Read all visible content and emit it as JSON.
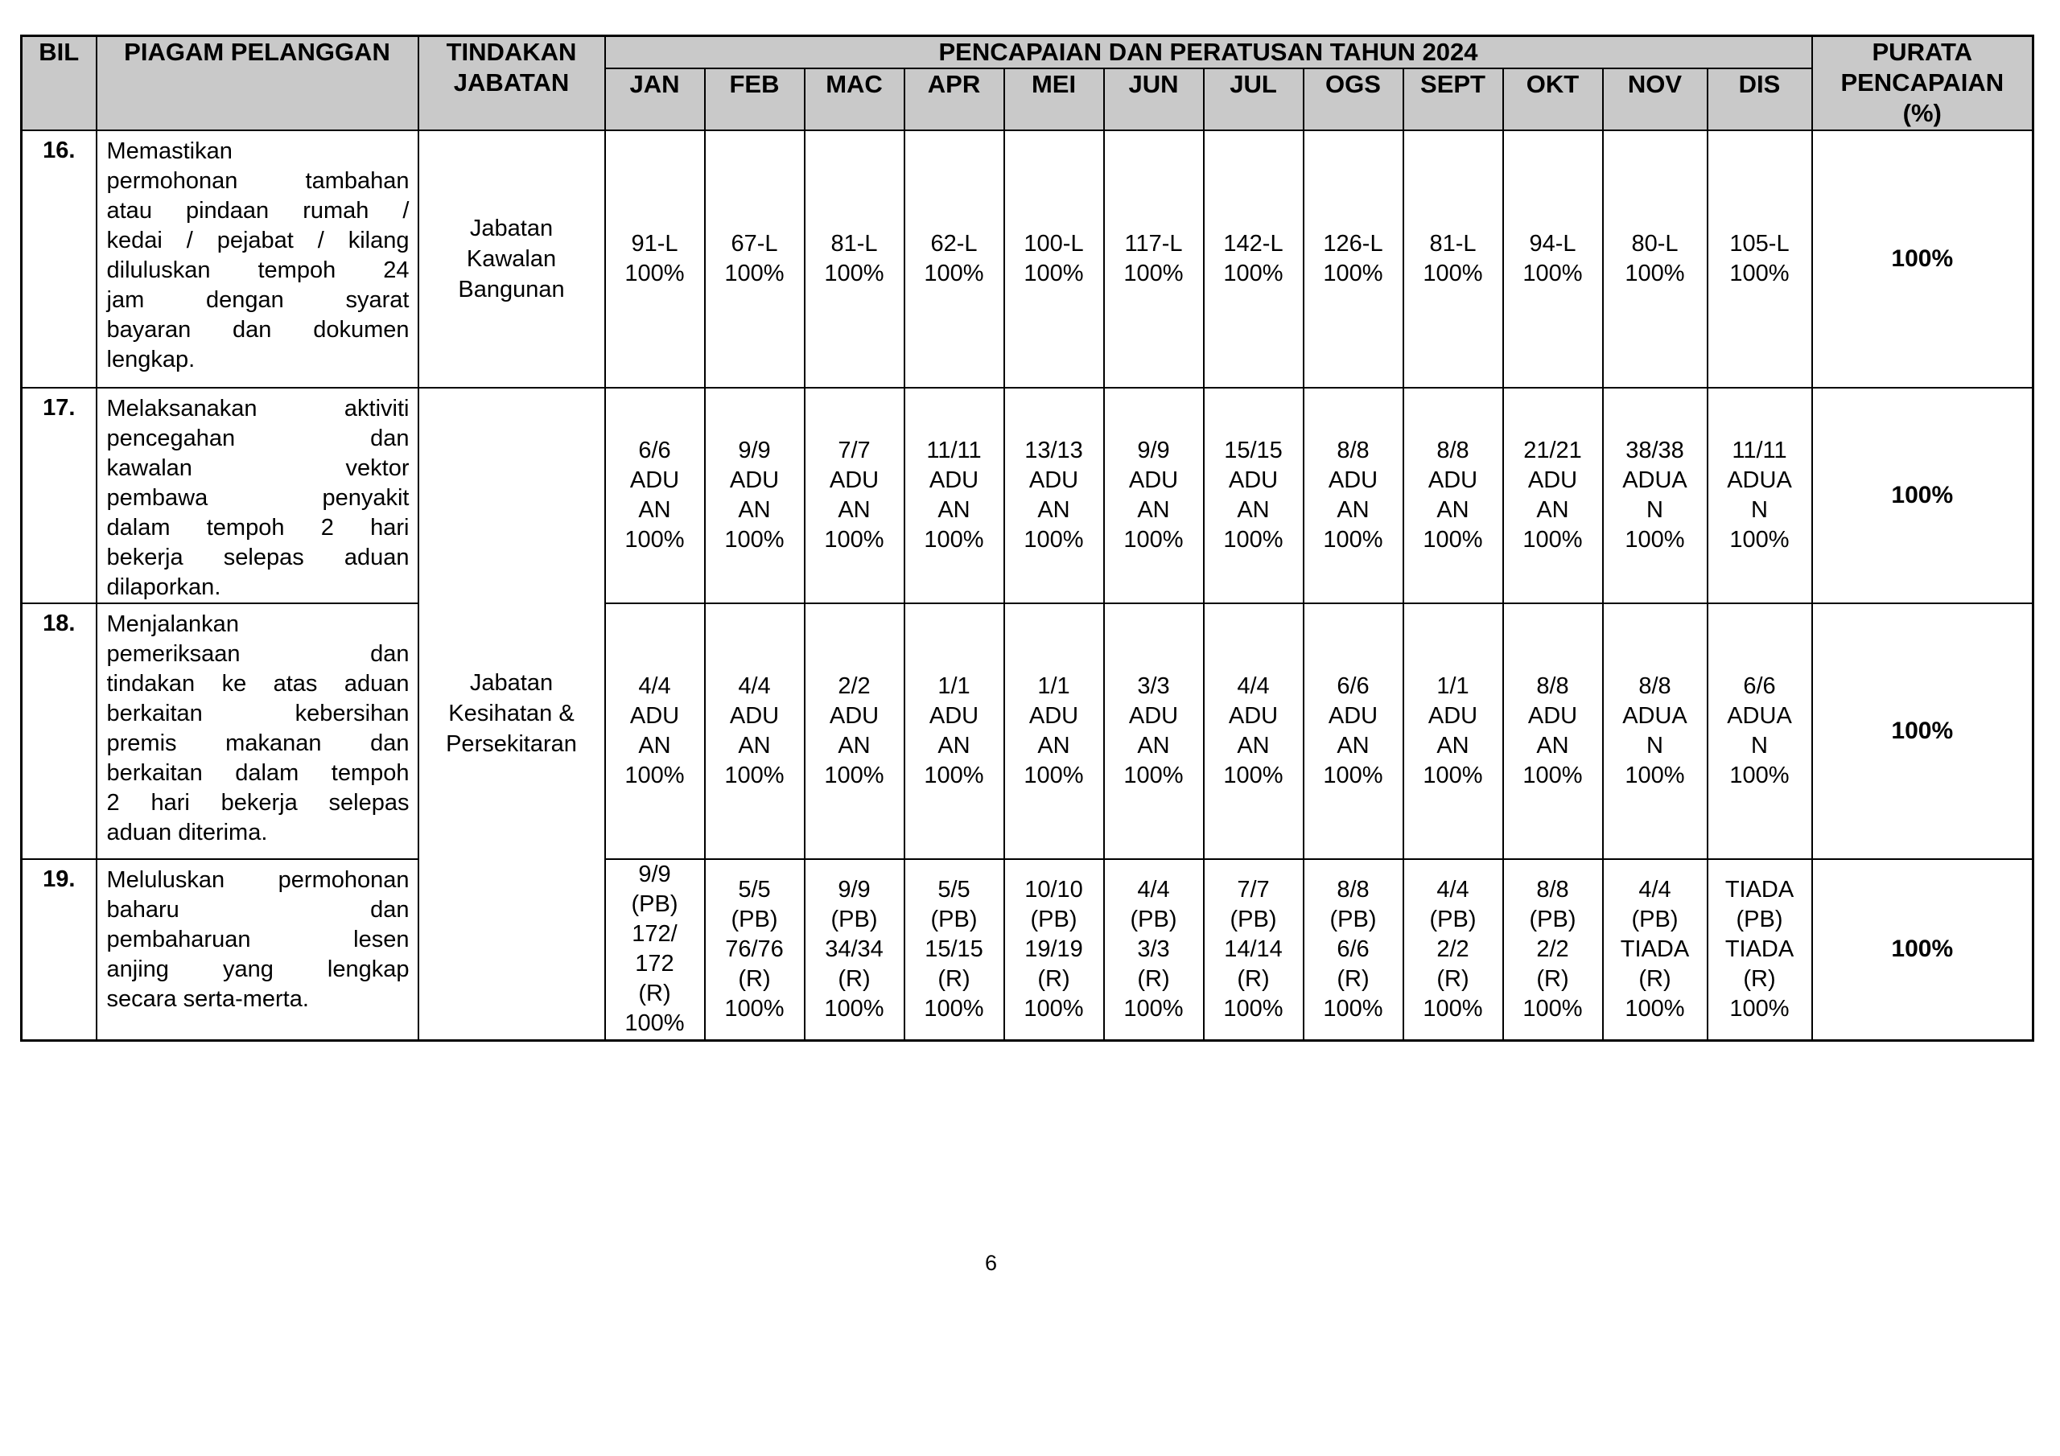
{
  "colors": {
    "header_bg": "#c9c9c9",
    "border": "#000000",
    "text": "#000000"
  },
  "table": {
    "header": {
      "bil": "BIL",
      "piagam": "PIAGAM PELANGGAN",
      "tindakan": "TINDAKAN\nJABATAN",
      "pencapaian_title": "PENCAPAIAN DAN PERATUSAN TAHUN 2024",
      "months": [
        "JAN",
        "FEB",
        "MAC",
        "APR",
        "MEI",
        "JUN",
        "JUL",
        "OGS",
        "SEPT",
        "OKT",
        "NOV",
        "DIS"
      ],
      "purata": "PURATA\nPENCAPAIAN\n(%)"
    },
    "rows": [
      {
        "bil": "16.",
        "piagam_lines": [
          "Memastikan",
          "permohonan tambahan",
          "atau pindaan rumah /",
          "kedai / pejabat / kilang",
          "diluluskan tempoh 24",
          "jam dengan syarat",
          "bayaran dan dokumen",
          "lengkap."
        ],
        "tindakan": "Jabatan\nKawalan\nBangunan",
        "tindakan_rowspan": 1,
        "cells": [
          "91-L\n100%",
          "67-L\n100%",
          "81-L\n100%",
          "62-L\n100%",
          "100-L\n100%",
          "117-L\n100%",
          "142-L\n100%",
          "126-L\n100%",
          "81-L\n100%",
          "94-L\n100%",
          "80-L\n100%",
          "105-L\n100%"
        ],
        "purata": "100%"
      },
      {
        "bil": "17.",
        "piagam_lines": [
          "Melaksanakan aktiviti",
          "pencegahan dan",
          "kawalan vektor",
          "pembawa penyakit",
          "dalam tempoh 2 hari",
          "bekerja selepas aduan",
          "dilaporkan."
        ],
        "tindakan": "Jabatan\nKesihatan &\nPersekitaran",
        "tindakan_rowspan": 3,
        "cells": [
          "6/6\nADU\nAN\n100%",
          "9/9\nADU\nAN\n100%",
          "7/7\nADU\nAN\n100%",
          "11/11\nADU\nAN\n100%",
          "13/13\nADU\nAN\n100%",
          "9/9\nADU\nAN\n100%",
          "15/15\nADU\nAN\n100%",
          "8/8\nADU\nAN\n100%",
          "8/8\nADU\nAN\n100%",
          "21/21\nADU\nAN\n100%",
          "38/38\nADUA\nN\n100%",
          "11/11\nADUA\nN\n100%"
        ],
        "purata": "100%"
      },
      {
        "bil": "18.",
        "piagam_lines": [
          "Menjalankan",
          "pemeriksaan dan",
          "tindakan ke atas aduan",
          "berkaitan kebersihan",
          "premis makanan dan",
          "berkaitan dalam tempoh",
          "2 hari bekerja selepas",
          "aduan diterima."
        ],
        "tindakan": null,
        "tindakan_rowspan": 0,
        "cells": [
          "4/4\nADU\nAN\n100%",
          "4/4\nADU\nAN\n100%",
          "2/2\nADU\nAN\n100%",
          "1/1\nADU\nAN\n100%",
          "1/1\nADU\nAN\n100%",
          "3/3\nADU\nAN\n100%",
          "4/4\nADU\nAN\n100%",
          "6/6\nADU\nAN\n100%",
          "1/1\nADU\nAN\n100%",
          "8/8\nADU\nAN\n100%",
          "8/8\nADUA\nN\n100%",
          "6/6\nADUA\nN\n100%"
        ],
        "purata": "100%"
      },
      {
        "bil": "19.",
        "piagam_lines": [
          "Meluluskan permohonan",
          "baharu dan",
          "pembaharuan lesen",
          "anjing yang lengkap",
          "secara serta-merta."
        ],
        "tindakan": null,
        "tindakan_rowspan": 0,
        "cells": [
          "9/9\n(PB)\n172/\n172\n(R)\n100%",
          "5/5\n(PB)\n76/76\n(R)\n100%",
          "9/9\n(PB)\n34/34\n(R)\n100%",
          "5/5\n(PB)\n15/15\n(R)\n100%",
          "10/10\n(PB)\n19/19\n(R)\n100%",
          "4/4\n(PB)\n3/3\n(R)\n100%",
          "7/7\n(PB)\n14/14\n(R)\n100%",
          "8/8\n(PB)\n6/6\n(R)\n100%",
          "4/4\n(PB)\n2/2\n(R)\n100%",
          "8/8\n(PB)\n2/2\n(R)\n100%",
          "4/4\n(PB)\nTIADA\n(R)\n100%",
          "TIADA\n(PB)\nTIADA\n(R)\n100%"
        ],
        "purata": "100%"
      }
    ]
  },
  "page": {
    "number": "6"
  }
}
